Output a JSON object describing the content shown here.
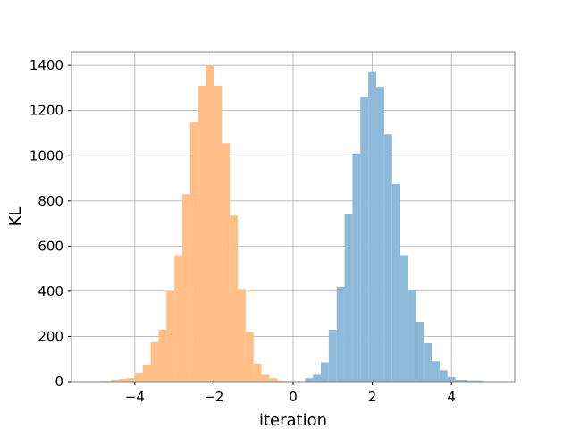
{
  "chart_data": {
    "type": "bar",
    "title": "",
    "xlabel": "iteration",
    "ylabel": "KL",
    "xlim": [
      -5.6,
      5.6
    ],
    "ylim": [
      0,
      1460
    ],
    "grid": true,
    "xticks": [
      -4,
      -2,
      0,
      2,
      4
    ],
    "xtick_labels": [
      "−4",
      "−2",
      "0",
      "2",
      "4"
    ],
    "yticks": [
      0,
      200,
      400,
      600,
      800,
      1000,
      1200,
      1400
    ],
    "series": [
      {
        "color": "#8fb9d9",
        "bins": [
          {
            "x0": 0.3,
            "x1": 0.5,
            "count": 15
          },
          {
            "x0": 0.5,
            "x1": 0.7,
            "count": 30
          },
          {
            "x0": 0.7,
            "x1": 0.9,
            "count": 85
          },
          {
            "x0": 0.9,
            "x1": 1.1,
            "count": 230
          },
          {
            "x0": 1.1,
            "x1": 1.3,
            "count": 420
          },
          {
            "x0": 1.3,
            "x1": 1.5,
            "count": 740
          },
          {
            "x0": 1.5,
            "x1": 1.7,
            "count": 1010
          },
          {
            "x0": 1.7,
            "x1": 1.9,
            "count": 1260
          },
          {
            "x0": 1.9,
            "x1": 2.1,
            "count": 1370
          },
          {
            "x0": 2.1,
            "x1": 2.3,
            "count": 1305
          },
          {
            "x0": 2.3,
            "x1": 2.5,
            "count": 1095
          },
          {
            "x0": 2.5,
            "x1": 2.7,
            "count": 875
          },
          {
            "x0": 2.7,
            "x1": 2.9,
            "count": 560
          },
          {
            "x0": 2.9,
            "x1": 3.1,
            "count": 405
          },
          {
            "x0": 3.1,
            "x1": 3.3,
            "count": 265
          },
          {
            "x0": 3.3,
            "x1": 3.5,
            "count": 170
          },
          {
            "x0": 3.5,
            "x1": 3.7,
            "count": 90
          },
          {
            "x0": 3.7,
            "x1": 3.9,
            "count": 50
          },
          {
            "x0": 3.9,
            "x1": 4.1,
            "count": 20
          },
          {
            "x0": 4.1,
            "x1": 4.4,
            "count": 8
          },
          {
            "x0": 4.4,
            "x1": 4.8,
            "count": 5
          },
          {
            "x0": 4.8,
            "x1": 5.2,
            "count": 2
          }
        ]
      },
      {
        "color": "#ffbf86",
        "bins": [
          {
            "x0": -5.0,
            "x1": -4.8,
            "count": 2
          },
          {
            "x0": -4.8,
            "x1": -4.6,
            "count": 3
          },
          {
            "x0": -4.6,
            "x1": -4.4,
            "count": 8
          },
          {
            "x0": -4.4,
            "x1": -4.2,
            "count": 12
          },
          {
            "x0": -4.2,
            "x1": -4.0,
            "count": 15
          },
          {
            "x0": -4.0,
            "x1": -3.8,
            "count": 40
          },
          {
            "x0": -3.8,
            "x1": -3.6,
            "count": 75
          },
          {
            "x0": -3.6,
            "x1": -3.4,
            "count": 175
          },
          {
            "x0": -3.4,
            "x1": -3.2,
            "count": 230
          },
          {
            "x0": -3.2,
            "x1": -3.0,
            "count": 400
          },
          {
            "x0": -3.0,
            "x1": -2.8,
            "count": 560
          },
          {
            "x0": -2.8,
            "x1": -2.6,
            "count": 830
          },
          {
            "x0": -2.6,
            "x1": -2.4,
            "count": 1150
          },
          {
            "x0": -2.4,
            "x1": -2.2,
            "count": 1310
          },
          {
            "x0": -2.2,
            "x1": -2.0,
            "count": 1400
          },
          {
            "x0": -2.0,
            "x1": -1.8,
            "count": 1310
          },
          {
            "x0": -1.8,
            "x1": -1.6,
            "count": 1055
          },
          {
            "x0": -1.6,
            "x1": -1.4,
            "count": 735
          },
          {
            "x0": -1.4,
            "x1": -1.2,
            "count": 410
          },
          {
            "x0": -1.2,
            "x1": -1.0,
            "count": 220
          },
          {
            "x0": -1.0,
            "x1": -0.8,
            "count": 80
          },
          {
            "x0": -0.8,
            "x1": -0.6,
            "count": 30
          },
          {
            "x0": -0.6,
            "x1": -0.4,
            "count": 15
          },
          {
            "x0": -0.4,
            "x1": -0.2,
            "count": 5
          }
        ]
      }
    ]
  }
}
